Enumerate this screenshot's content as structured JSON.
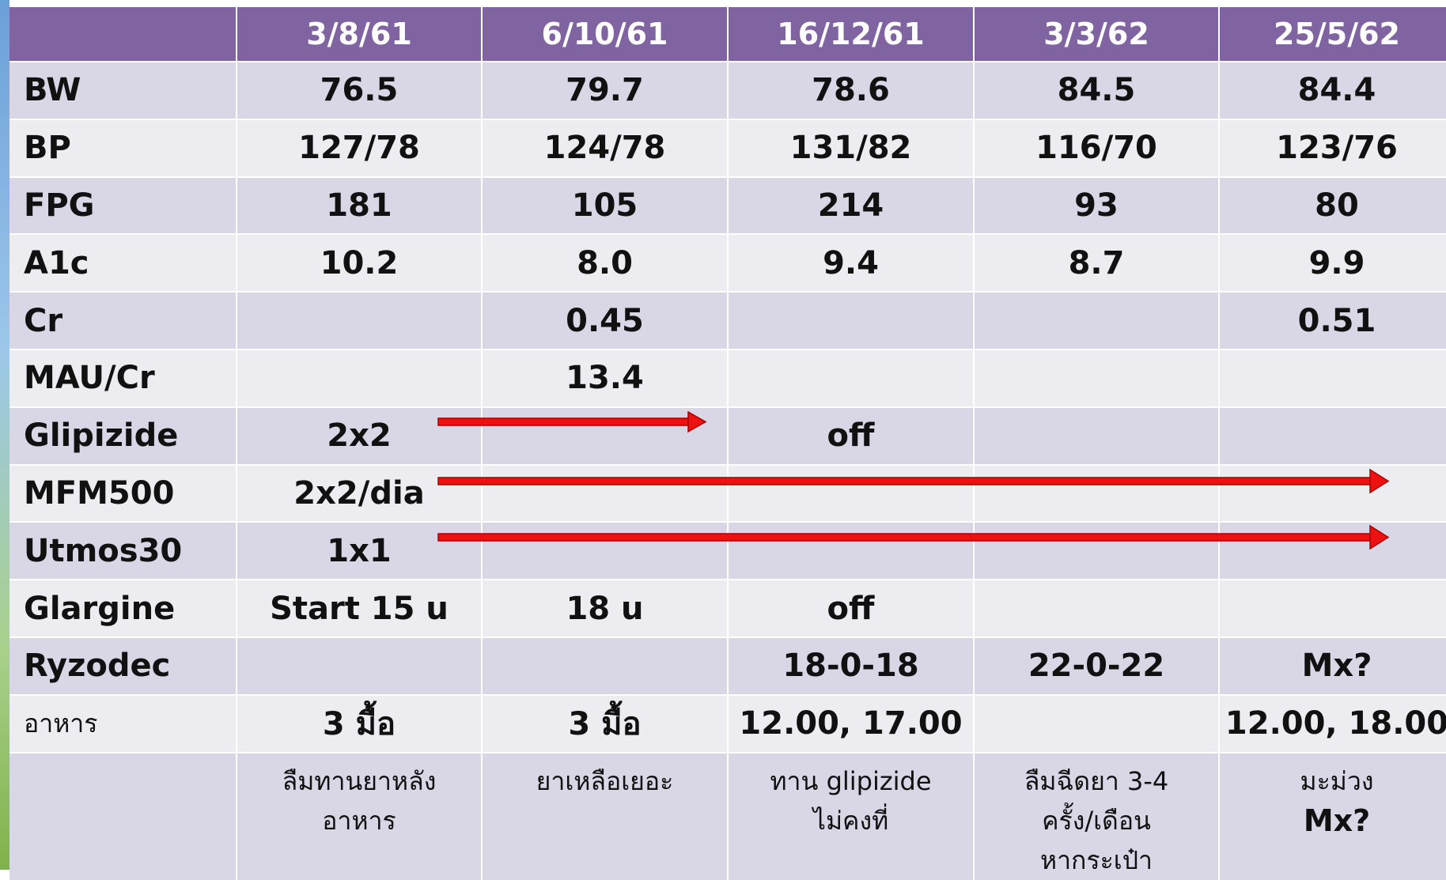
{
  "table": {
    "header": [
      null,
      "3/8/61",
      "6/10/61",
      "16/12/61",
      "3/3/62",
      "25/5/62"
    ],
    "rows": [
      [
        "BW",
        "76.5",
        "79.7",
        "78.6",
        "84.5",
        "84.4"
      ],
      [
        "BP",
        "127/78",
        "124/78",
        "131/82",
        "116/70",
        "123/76"
      ],
      [
        "FPG",
        "181",
        "105",
        "214",
        "93",
        "80"
      ],
      [
        "A1c",
        "10.2",
        "8.0",
        "9.4",
        "8.7",
        "9.9"
      ],
      [
        "Cr",
        null,
        "0.45",
        null,
        null,
        "0.51"
      ],
      [
        "MAU/Cr",
        null,
        "13.4",
        null,
        null,
        null
      ],
      [
        "Glipizide",
        "2x2",
        null,
        "off",
        null,
        null
      ],
      [
        "MFM500",
        "2x2/dia",
        null,
        null,
        null,
        null
      ],
      [
        "Utmos30",
        "1x1",
        null,
        null,
        null,
        null
      ],
      [
        "Glargine",
        "Start 15 u",
        "18 u",
        "off",
        null,
        null
      ],
      [
        "Ryzodec",
        null,
        null,
        "18-0-18",
        "22-0-22",
        "Mx?"
      ],
      [
        "อาหาร",
        "3 มื้อ",
        "3 มื้อ",
        "12.00, 17.00",
        null,
        "12.00, 18.00"
      ]
    ],
    "notes": [
      null,
      [
        "ลืมทานยาหลัง",
        "อาหาร"
      ],
      [
        "ยาเหลือเยอะ"
      ],
      [
        "ทาน glipizide",
        "ไม่คงที่"
      ],
      [
        "ลืมฉีดยา 3-4",
        "ครั้ง/เดือน",
        "หากระเป๋า"
      ],
      [
        "มะม่วง",
        "Mx?"
      ]
    ]
  }
}
